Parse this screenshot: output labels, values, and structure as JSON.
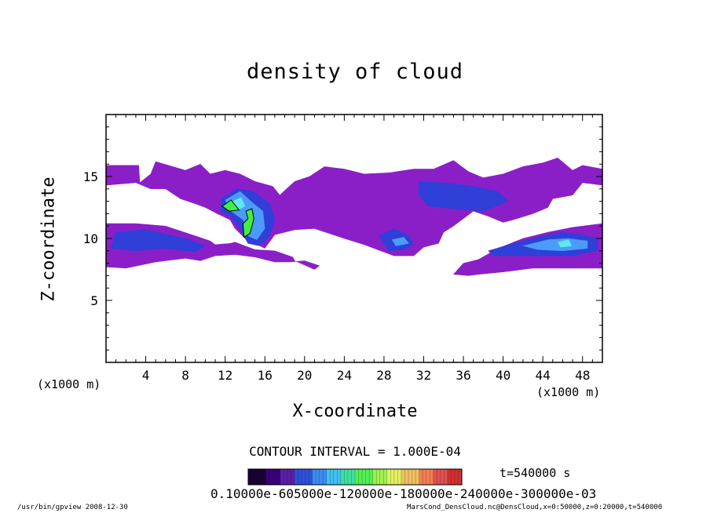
{
  "chart_data": {
    "type": "heatmap",
    "title": "density of cloud",
    "xlabel": "X-coordinate",
    "ylabel": "Z-coordinate",
    "x_unit_left": "(x1000 m)",
    "x_unit_right": "(x1000 m)",
    "xlim": [
      0,
      50
    ],
    "ylim": [
      0,
      20
    ],
    "x_ticks": [
      "4",
      "8",
      "12",
      "16",
      "20",
      "24",
      "28",
      "32",
      "36",
      "40",
      "44",
      "48"
    ],
    "x_tick_values": [
      4,
      8,
      12,
      16,
      20,
      24,
      28,
      32,
      36,
      40,
      44,
      48
    ],
    "y_ticks": [
      "5",
      "10",
      "15"
    ],
    "y_tick_values": [
      5,
      10,
      15
    ],
    "contour_interval": "CONTOUR INTERVAL = 1.000E-04",
    "time_label": "t=540000 s",
    "colorbar_labels": "0.10000e-605000e-120000e-180000e-240000e-300000e-03",
    "colorbar_colors": [
      "#1a0033",
      "#3a007a",
      "#5b1fa8",
      "#3050d8",
      "#3a8cf0",
      "#40c0f0",
      "#40e0a0",
      "#50f050",
      "#a0f050",
      "#e0f060",
      "#f0c060",
      "#f08050",
      "#e05050",
      "#d03030"
    ],
    "colors": {
      "purple": "#8a1fc8",
      "blue": "#2f3fd8",
      "light_blue": "#4a9cf8",
      "cyan": "#60e8f0",
      "green": "#40f040"
    },
    "cloud_regions": [
      {
        "level": "purple",
        "points": [
          [
            0,
            15.9
          ],
          [
            3.3,
            15.9
          ],
          [
            3.4,
            14.5
          ],
          [
            4.5,
            15.2
          ],
          [
            5,
            16.2
          ],
          [
            8,
            15.5
          ],
          [
            9.5,
            16
          ],
          [
            10.5,
            15.2
          ],
          [
            12,
            15.5
          ],
          [
            13.5,
            15.2
          ],
          [
            15,
            14.6
          ],
          [
            16.8,
            14.2
          ],
          [
            17.5,
            13.5
          ],
          [
            19,
            14.6
          ],
          [
            20.5,
            15
          ],
          [
            22,
            15.8
          ],
          [
            24,
            15.6
          ],
          [
            26,
            15.2
          ],
          [
            28.5,
            15.3
          ],
          [
            31,
            15.6
          ],
          [
            33,
            15.6
          ],
          [
            35,
            16.3
          ],
          [
            36.5,
            15.4
          ],
          [
            38,
            14.9
          ],
          [
            40,
            15.2
          ],
          [
            42,
            15.8
          ],
          [
            44,
            16.1
          ],
          [
            45.5,
            16.5
          ],
          [
            47,
            15.5
          ],
          [
            48,
            15.9
          ],
          [
            50,
            15.6
          ],
          [
            50,
            14.3
          ],
          [
            48,
            14.5
          ],
          [
            47,
            13.5
          ],
          [
            45,
            13.2
          ],
          [
            44.5,
            12.5
          ],
          [
            43,
            12
          ],
          [
            41,
            11.5
          ],
          [
            40,
            11.3
          ],
          [
            38.5,
            11.8
          ],
          [
            37,
            12.2
          ],
          [
            36,
            11.6
          ],
          [
            35,
            11
          ],
          [
            34,
            10.5
          ],
          [
            33.5,
            9.6
          ],
          [
            32,
            9.3
          ],
          [
            31,
            8.6
          ],
          [
            29,
            8.6
          ],
          [
            26,
            9.5
          ],
          [
            24,
            10
          ],
          [
            21,
            10.8
          ],
          [
            19,
            10.7
          ],
          [
            17,
            10.3
          ],
          [
            16,
            9.2
          ],
          [
            15,
            9.6
          ],
          [
            14,
            10
          ],
          [
            13,
            10.8
          ],
          [
            12.5,
            11.5
          ],
          [
            11.2,
            12
          ],
          [
            10,
            12.5
          ],
          [
            9,
            12.8
          ],
          [
            7.5,
            13.2
          ],
          [
            6,
            14
          ],
          [
            4.5,
            14
          ],
          [
            3,
            14.5
          ],
          [
            0,
            14.3
          ]
        ]
      },
      {
        "level": "purple",
        "points": [
          [
            0,
            11.2
          ],
          [
            3,
            11.2
          ],
          [
            6,
            11
          ],
          [
            9,
            10.2
          ],
          [
            10.5,
            9.8
          ],
          [
            11,
            9.5
          ],
          [
            12.5,
            9.6
          ],
          [
            13,
            9.7
          ],
          [
            15,
            9.1
          ],
          [
            17,
            9
          ],
          [
            18.8,
            8.5
          ],
          [
            19,
            8.2
          ],
          [
            21,
            7.5
          ],
          [
            21.5,
            7.8
          ],
          [
            20,
            8.2
          ],
          [
            18.5,
            8.1
          ],
          [
            17,
            8.1
          ],
          [
            15,
            8.5
          ],
          [
            13,
            8.7
          ],
          [
            11,
            8.6
          ],
          [
            9.5,
            8.2
          ],
          [
            8,
            8.4
          ],
          [
            5,
            8.1
          ],
          [
            2,
            7.6
          ],
          [
            0,
            7.7
          ]
        ]
      },
      {
        "level": "purple",
        "points": [
          [
            35,
            7.1
          ],
          [
            36,
            8
          ],
          [
            37.5,
            8.3
          ],
          [
            39.5,
            9.2
          ],
          [
            42,
            10
          ],
          [
            44.5,
            10.5
          ],
          [
            47,
            10.9
          ],
          [
            50,
            11.2
          ],
          [
            50,
            7.6
          ],
          [
            47,
            7.6
          ],
          [
            43,
            7.6
          ],
          [
            40,
            7.3
          ],
          [
            37.5,
            7.1
          ],
          [
            36.5,
            7
          ]
        ]
      },
      {
        "level": "blue",
        "points": [
          [
            1,
            10.5
          ],
          [
            4,
            10.7
          ],
          [
            8,
            10
          ],
          [
            10,
            9.4
          ],
          [
            9,
            8.9
          ],
          [
            6,
            9.2
          ],
          [
            3,
            9
          ],
          [
            0.5,
            9.2
          ]
        ]
      },
      {
        "level": "blue",
        "points": [
          [
            11.6,
            13.2
          ],
          [
            13.2,
            14
          ],
          [
            14.8,
            13.8
          ],
          [
            16.5,
            12.8
          ],
          [
            17,
            11.5
          ],
          [
            16.5,
            10.2
          ],
          [
            15.5,
            9.4
          ],
          [
            14.3,
            9.6
          ],
          [
            13.3,
            11
          ],
          [
            12.5,
            11.8
          ],
          [
            11.5,
            12.2
          ]
        ]
      },
      {
        "level": "blue",
        "points": [
          [
            27.5,
            10.2
          ],
          [
            29,
            10.8
          ],
          [
            30.5,
            10.2
          ],
          [
            31,
            9.5
          ],
          [
            30,
            9.1
          ],
          [
            28.5,
            9
          ]
        ]
      },
      {
        "level": "blue",
        "points": [
          [
            31.5,
            14.6
          ],
          [
            34,
            14.5
          ],
          [
            37,
            14.2
          ],
          [
            39.5,
            13.8
          ],
          [
            40.5,
            13
          ],
          [
            38,
            12.2
          ],
          [
            35,
            12.4
          ],
          [
            32.5,
            12.6
          ],
          [
            31.5,
            13.5
          ]
        ]
      },
      {
        "level": "blue",
        "points": [
          [
            38.5,
            9
          ],
          [
            41,
            9.6
          ],
          [
            44,
            10.2
          ],
          [
            46,
            10.5
          ],
          [
            48,
            10.3
          ],
          [
            49.5,
            10
          ],
          [
            49.5,
            9
          ],
          [
            47,
            8.6
          ],
          [
            44,
            8.6
          ],
          [
            41,
            8.6
          ],
          [
            39,
            8.6
          ]
        ]
      },
      {
        "level": "light_blue",
        "points": [
          [
            12,
            13.1
          ],
          [
            13.5,
            13.8
          ],
          [
            14.6,
            13
          ],
          [
            15.8,
            12.2
          ],
          [
            16,
            10.8
          ],
          [
            15.2,
            9.9
          ],
          [
            14.3,
            10.2
          ],
          [
            13.8,
            11.5
          ],
          [
            12.6,
            12.2
          ]
        ]
      },
      {
        "level": "light_blue",
        "points": [
          [
            28.8,
            9.9
          ],
          [
            30,
            10.1
          ],
          [
            30.5,
            9.6
          ],
          [
            29.2,
            9.4
          ]
        ]
      },
      {
        "level": "light_blue",
        "points": [
          [
            42,
            9.4
          ],
          [
            44.5,
            9.9
          ],
          [
            46.5,
            10
          ],
          [
            48.5,
            9.8
          ],
          [
            48.5,
            9.2
          ],
          [
            46,
            9
          ],
          [
            43.5,
            9.1
          ]
        ]
      },
      {
        "level": "cyan",
        "points": [
          [
            12.5,
            12.9
          ],
          [
            13.6,
            13.3
          ],
          [
            14,
            12.6
          ],
          [
            13.1,
            12.2
          ]
        ]
      },
      {
        "level": "cyan",
        "points": [
          [
            45.5,
            9.7
          ],
          [
            46.6,
            9.9
          ],
          [
            46.9,
            9.4
          ],
          [
            45.8,
            9.3
          ]
        ]
      },
      {
        "level": "green",
        "points": [
          [
            11.7,
            12.6
          ],
          [
            12.6,
            13.1
          ],
          [
            13.4,
            12.3
          ],
          [
            12.4,
            12.2
          ]
        ]
      },
      {
        "level": "green",
        "points": [
          [
            14.1,
            12.2
          ],
          [
            14.7,
            12.4
          ],
          [
            14.9,
            11.6
          ],
          [
            14.5,
            10.4
          ],
          [
            13.9,
            10.1
          ],
          [
            13.8,
            11.2
          ],
          [
            14.3,
            11.6
          ]
        ]
      }
    ]
  },
  "footer": {
    "left": "/usr/bin/gpview  2008-12-30",
    "right": "MarsCond_DensCloud.nc@DensCloud,x=0:50000,z=0:20000,t=540000"
  }
}
